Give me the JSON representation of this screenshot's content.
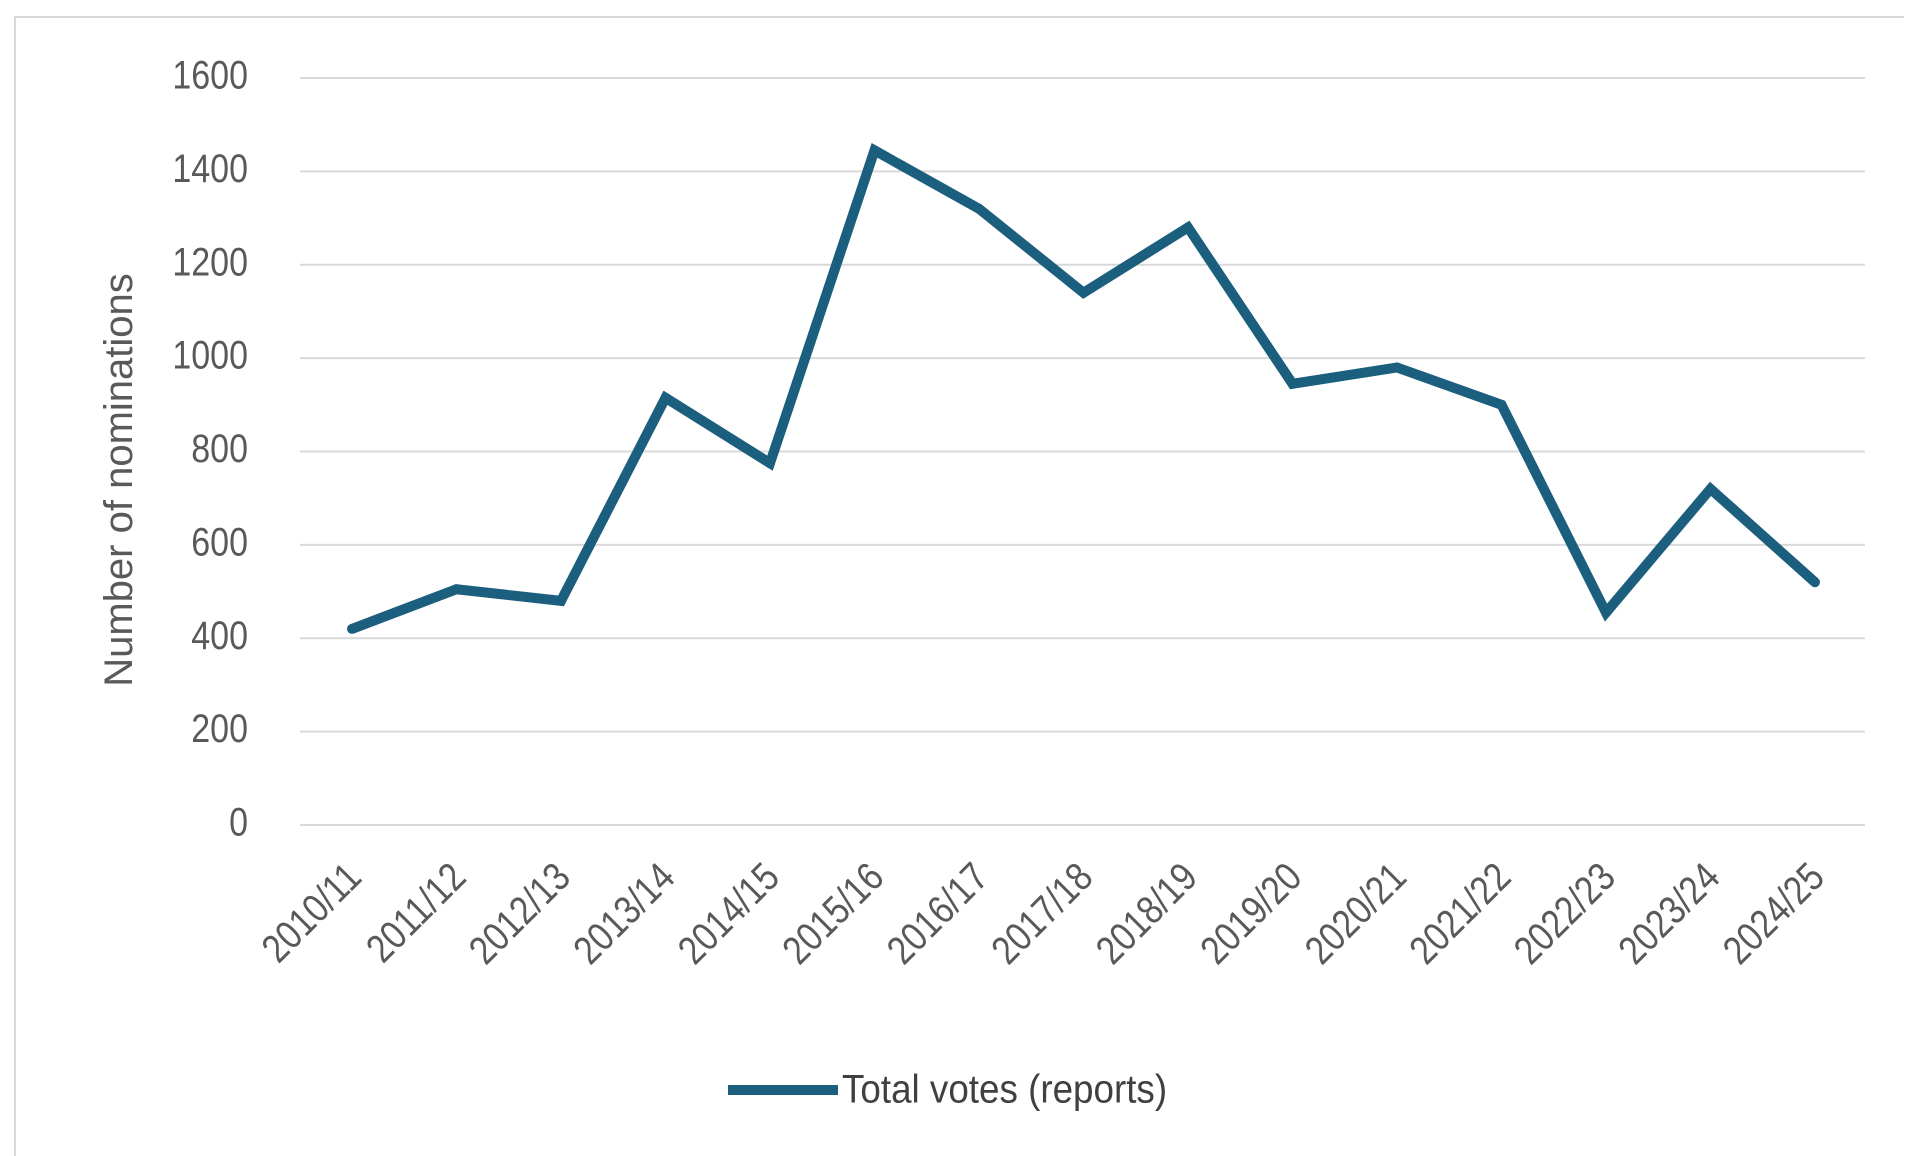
{
  "chart_data": {
    "type": "line",
    "title": "",
    "xlabel": "",
    "ylabel": "Number of nominations",
    "categories": [
      "2010/11",
      "2011/12",
      "2012/13",
      "2013/14",
      "2014/15",
      "2015/16",
      "2016/17",
      "2017/18",
      "2018/19",
      "2019/20",
      "2020/21",
      "2021/22",
      "2022/23",
      "2023/24",
      "2024/25"
    ],
    "series": [
      {
        "name": "Total votes (reports)",
        "color": "#1b5e7e",
        "values": [
          420,
          505,
          480,
          915,
          775,
          1445,
          1320,
          1140,
          1280,
          945,
          980,
          900,
          455,
          720,
          520
        ]
      }
    ],
    "ylim": [
      0,
      1600
    ],
    "yticks": [
      0,
      200,
      400,
      600,
      800,
      1000,
      1200,
      1400,
      1600
    ],
    "grid": true,
    "legend_position": "bottom"
  }
}
